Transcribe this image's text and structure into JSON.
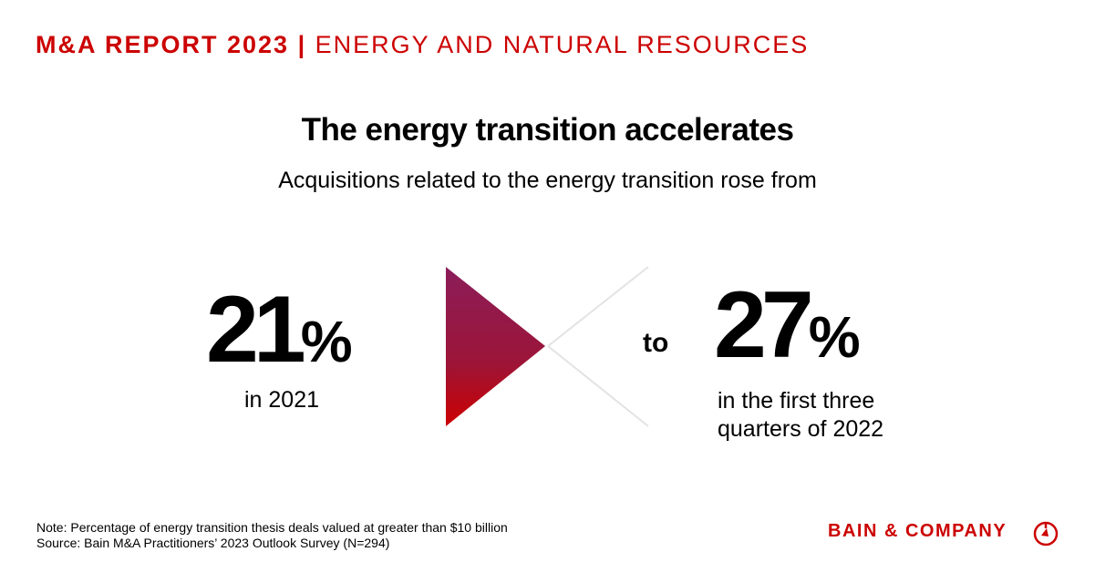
{
  "header": {
    "report": "M&A REPORT 2023",
    "separator": "|",
    "sector": "ENERGY AND NATURAL RESOURCES"
  },
  "title": "The energy transition accelerates",
  "subtitle": "Acquisitions related to the energy transition rose from",
  "from": {
    "value": "21",
    "unit": "%",
    "label": "in 2021"
  },
  "connector": "to",
  "to": {
    "value": "27",
    "unit": "%",
    "label_line1": "in the first three",
    "label_line2": "quarters of 2022"
  },
  "note": "Note: Percentage of energy transition thesis deals valued at greater than $10 billion",
  "source": "Source: Bain M&A Practitioners’ 2023 Outlook Survey (N=294)",
  "brand": "BAIN & COMPANY",
  "colors": {
    "accent": "#cc0000",
    "gradient_top": "#8b1d5a",
    "gradient_bottom": "#cc0000",
    "lines": "#e3e3e3"
  }
}
